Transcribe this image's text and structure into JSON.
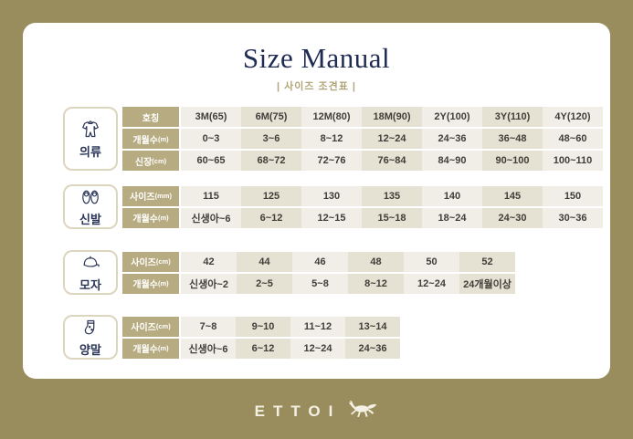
{
  "title": "Size Manual",
  "subtitle": "| 사이즈 조견표 |",
  "brand": {
    "name": "ETTOI",
    "logo_icon": "horse-icon"
  },
  "colors": {
    "background": "#9a8d5d",
    "card": "#ffffff",
    "title_navy": "#1f2b52",
    "subtitle_tan": "#b0a478",
    "header_cell": "#b7ab81",
    "cell_light": "#f1eee7",
    "cell_dark": "#e5e1d3",
    "logo_cream": "#f4f1e4"
  },
  "sections": [
    {
      "id": "clothing",
      "category": "의류",
      "icon": "onesie-icon",
      "rows": [
        {
          "label": "호칭",
          "unit": "",
          "values": [
            "3M(65)",
            "6M(75)",
            "12M(80)",
            "18M(90)",
            "2Y(100)",
            "3Y(110)",
            "4Y(120)"
          ]
        },
        {
          "label": "개월수",
          "unit": "(m)",
          "values": [
            "0~3",
            "3~6",
            "8~12",
            "12~24",
            "24~36",
            "36~48",
            "48~60"
          ]
        },
        {
          "label": "신장",
          "unit": "(cm)",
          "values": [
            "60~65",
            "68~72",
            "72~76",
            "76~84",
            "84~90",
            "90~100",
            "100~110"
          ]
        }
      ]
    },
    {
      "id": "shoes",
      "category": "신발",
      "icon": "shoes-icon",
      "rows": [
        {
          "label": "사이즈",
          "unit": "(mm)",
          "values": [
            "115",
            "125",
            "130",
            "135",
            "140",
            "145",
            "150"
          ]
        },
        {
          "label": "개월수",
          "unit": "(m)",
          "values": [
            "신생아~6",
            "6~12",
            "12~15",
            "15~18",
            "18~24",
            "24~30",
            "30~36"
          ]
        }
      ]
    },
    {
      "id": "hat",
      "category": "모자",
      "icon": "cap-icon",
      "rows": [
        {
          "label": "사이즈",
          "unit": "(cm)",
          "values": [
            "42",
            "44",
            "46",
            "48",
            "50",
            "52"
          ]
        },
        {
          "label": "개월수",
          "unit": "(m)",
          "values": [
            "신생아~2",
            "2~5",
            "5~8",
            "8~12",
            "12~24",
            "24개월이상"
          ]
        }
      ]
    },
    {
      "id": "socks",
      "category": "양말",
      "icon": "sock-icon",
      "rows": [
        {
          "label": "사이즈",
          "unit": "(cm)",
          "values": [
            "7~8",
            "9~10",
            "11~12",
            "13~14"
          ]
        },
        {
          "label": "개월수",
          "unit": "(m)",
          "values": [
            "신생아~6",
            "6~12",
            "12~24",
            "24~36"
          ]
        }
      ]
    }
  ]
}
